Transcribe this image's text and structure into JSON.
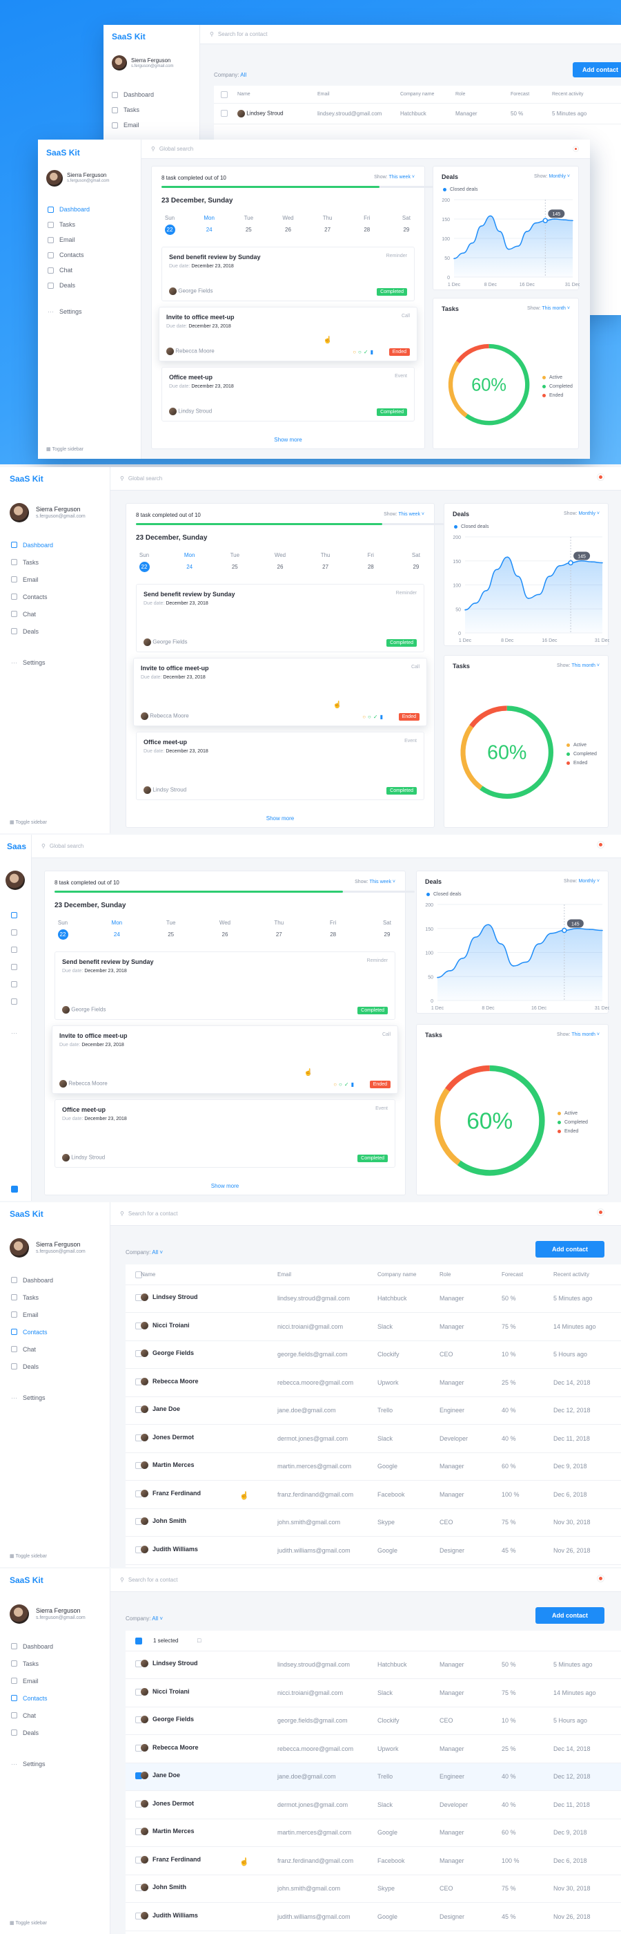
{
  "app": {
    "logo": "SaaS Kit",
    "logo_short": "Saas"
  },
  "user": {
    "name": "Sierra Ferguson",
    "email": "s.ferguson@gmail.com"
  },
  "search": {
    "global": "Global search",
    "contact": "Search for a contact"
  },
  "nav": {
    "items": [
      "Dashboard",
      "Tasks",
      "Email",
      "Contacts",
      "Chat",
      "Deals"
    ],
    "settings": "Settings",
    "toggle": "Toggle sidebar"
  },
  "tasks_card": {
    "progress_text": "8 task completed out of 10",
    "progress_value": 0.8,
    "show_label": "Show:",
    "show_value": "This week",
    "date": "23 December, Sunday",
    "days": [
      {
        "d": "Sun",
        "n": "22"
      },
      {
        "d": "Mon",
        "n": "24"
      },
      {
        "d": "Tue",
        "n": "25"
      },
      {
        "d": "Wed",
        "n": "26"
      },
      {
        "d": "Thu",
        "n": "27"
      },
      {
        "d": "Fri",
        "n": "28"
      },
      {
        "d": "Sat",
        "n": "29"
      }
    ],
    "items": [
      {
        "title": "Send benefit review by Sunday",
        "type": "Reminder",
        "due_label": "Due date:",
        "due": "December 23, 2018",
        "person": "George Fields",
        "status": "Completed"
      },
      {
        "title": "Invite to office meet-up",
        "type": "Call",
        "due_label": "Due date:",
        "due": "December 23, 2018",
        "person": "Rebecca Moore",
        "status": "Ended"
      },
      {
        "title": "Office meet-up",
        "type": "Event",
        "due_label": "Due date:",
        "due": "December 23, 2018",
        "person": "Lindsy Stroud",
        "status": "Completed"
      }
    ],
    "show_more": "Show more"
  },
  "deals_card": {
    "title": "Deals",
    "show_label": "Show:",
    "show_value": "Monthly",
    "legend": "Closed deals",
    "tooltip": "145",
    "y_ticks": [
      "200",
      "150",
      "100",
      "50",
      "0"
    ],
    "x_ticks": [
      "1 Dec",
      "8 Dec",
      "16 Dec",
      "31 Dec"
    ]
  },
  "donut_card": {
    "title": "Tasks",
    "show_label": "Show:",
    "show_value": "This month",
    "value_text": "60%",
    "legend": [
      "Active",
      "Completed",
      "Ended"
    ],
    "colors": {
      "active": "#f6b23d",
      "completed": "#2ecc71",
      "ended": "#f4593d"
    }
  },
  "chart_data": {
    "type": "area",
    "x": [
      "1 Dec",
      "3 Dec",
      "5 Dec",
      "7 Dec",
      "8 Dec",
      "10 Dec",
      "12 Dec",
      "14 Dec",
      "16 Dec",
      "18 Dec",
      "20 Dec",
      "24 Dec",
      "28 Dec",
      "31 Dec"
    ],
    "series": [
      {
        "name": "Closed deals",
        "values": [
          48,
          62,
          88,
          132,
          158,
          118,
          72,
          80,
          118,
          140,
          146,
          150,
          148,
          146
        ]
      }
    ],
    "ylim": [
      0,
      200
    ],
    "y_ticks": [
      0,
      50,
      100,
      150,
      200
    ],
    "x_ticks": [
      "1 Dec",
      "8 Dec",
      "16 Dec",
      "31 Dec"
    ],
    "title": "Deals",
    "annotation": "145",
    "grid": true,
    "legend": "top-left"
  },
  "contacts": {
    "company_label": "Company:",
    "company_value": "All",
    "add_button": "Add contact",
    "selected_text": "1 selected",
    "headers": [
      "Name",
      "Email",
      "Company name",
      "Role",
      "Forecast",
      "Recent activity"
    ],
    "rows": [
      [
        "Lindsey Stroud",
        "lindsey.stroud@gmail.com",
        "Hatchbuck",
        "Manager",
        "50 %",
        "5 Minutes ago"
      ],
      [
        "Nicci Troiani",
        "nicci.troiani@gmail.com",
        "Slack",
        "Manager",
        "75 %",
        "14 Minutes ago"
      ],
      [
        "George Fields",
        "george.fields@gmail.com",
        "Clockify",
        "CEO",
        "10 %",
        "5 Hours ago"
      ],
      [
        "Rebecca Moore",
        "rebecca.moore@gmail.com",
        "Upwork",
        "Manager",
        "25 %",
        "Dec 14, 2018"
      ],
      [
        "Jane Doe",
        "jane.doe@gmail.com",
        "Trello",
        "Engineer",
        "40 %",
        "Dec 12, 2018"
      ],
      [
        "Jones Dermot",
        "dermot.jones@gmail.com",
        "Slack",
        "Developer",
        "40 %",
        "Dec 11, 2018"
      ],
      [
        "Martin Merces",
        "martin.merces@gmail.com",
        "Google",
        "Manager",
        "60 %",
        "Dec 9, 2018"
      ],
      [
        "Franz Ferdinand",
        "franz.ferdinand@gmail.com",
        "Facebook",
        "Manager",
        "100 %",
        "Dec 6, 2018"
      ],
      [
        "John Smith",
        "john.smith@gmail.com",
        "Skype",
        "CEO",
        "75 %",
        "Nov 30, 2018"
      ],
      [
        "Judith Williams",
        "judith.williams@gmail.com",
        "Google",
        "Designer",
        "45 %",
        "Nov 26, 2018"
      ]
    ],
    "selected_row": 4
  }
}
